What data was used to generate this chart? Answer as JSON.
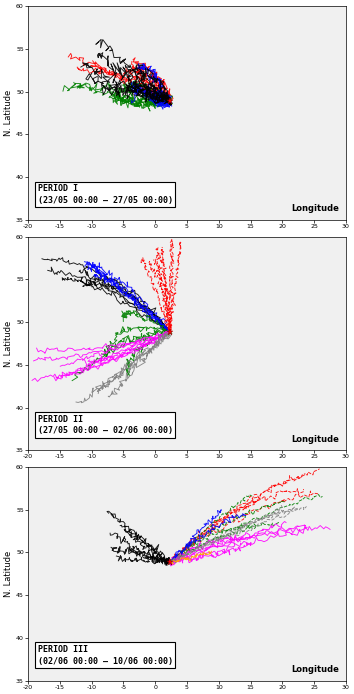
{
  "paris": [
    2.35,
    48.87
  ],
  "xlim": [
    -20,
    30
  ],
  "ylim": [
    35,
    60
  ],
  "xticks": [
    -20,
    -15,
    -10,
    -5,
    0,
    5,
    10,
    15,
    20,
    25,
    30
  ],
  "yticks": [
    35,
    40,
    45,
    50,
    55,
    60
  ],
  "ylabel": "N. Latitude",
  "xlabel": "Longitude",
  "panels": [
    {
      "label": "PERIOD I",
      "sublabel": "(23/05 00:00 – 27/05 00:00)"
    },
    {
      "label": "PERIOD II",
      "sublabel": "(27/05 00:00 – 02/06 00:00)"
    },
    {
      "label": "PERIOD III",
      "sublabel": "(02/06 00:00 – 10/06 00:00)"
    }
  ]
}
